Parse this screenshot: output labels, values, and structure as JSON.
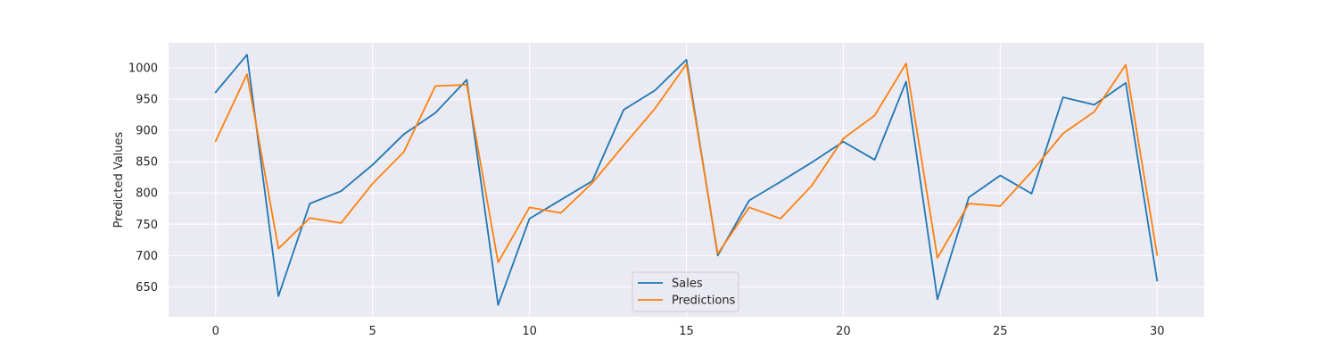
{
  "chart_data": {
    "type": "line",
    "ylabel": "Predicted Values",
    "xlabel": "",
    "title": "",
    "x": [
      0,
      1,
      2,
      3,
      4,
      5,
      6,
      7,
      8,
      9,
      10,
      11,
      12,
      13,
      14,
      15,
      16,
      17,
      18,
      19,
      20,
      21,
      22,
      23,
      24,
      25,
      26,
      27,
      28,
      29,
      30
    ],
    "xticks": [
      0,
      5,
      10,
      15,
      20,
      25,
      30
    ],
    "yticks": [
      650,
      700,
      750,
      800,
      850,
      900,
      950,
      1000
    ],
    "xlim": [
      -1.5,
      31.5
    ],
    "ylim": [
      602,
      1040
    ],
    "grid": true,
    "legend_position": "lower center",
    "background_color": "#eaeaf2",
    "grid_color": "#ffffff",
    "series": [
      {
        "name": "Sales",
        "color": "#1f77b4",
        "values": [
          961,
          1021,
          635,
          783,
          803,
          845,
          894,
          928,
          981,
          621,
          759,
          789,
          819,
          933,
          964,
          1013,
          700,
          788,
          818,
          849,
          882,
          853,
          978,
          630,
          793,
          828,
          799,
          953,
          941,
          976,
          660
        ]
      },
      {
        "name": "Predictions",
        "color": "#ff7f0e",
        "values": [
          883,
          990,
          711,
          760,
          752,
          815,
          866,
          971,
          973,
          689,
          777,
          768,
          816,
          876,
          935,
          1006,
          703,
          777,
          759,
          812,
          887,
          924,
          1007,
          696,
          783,
          779,
          834,
          895,
          930,
          1005,
          701
        ]
      }
    ]
  }
}
